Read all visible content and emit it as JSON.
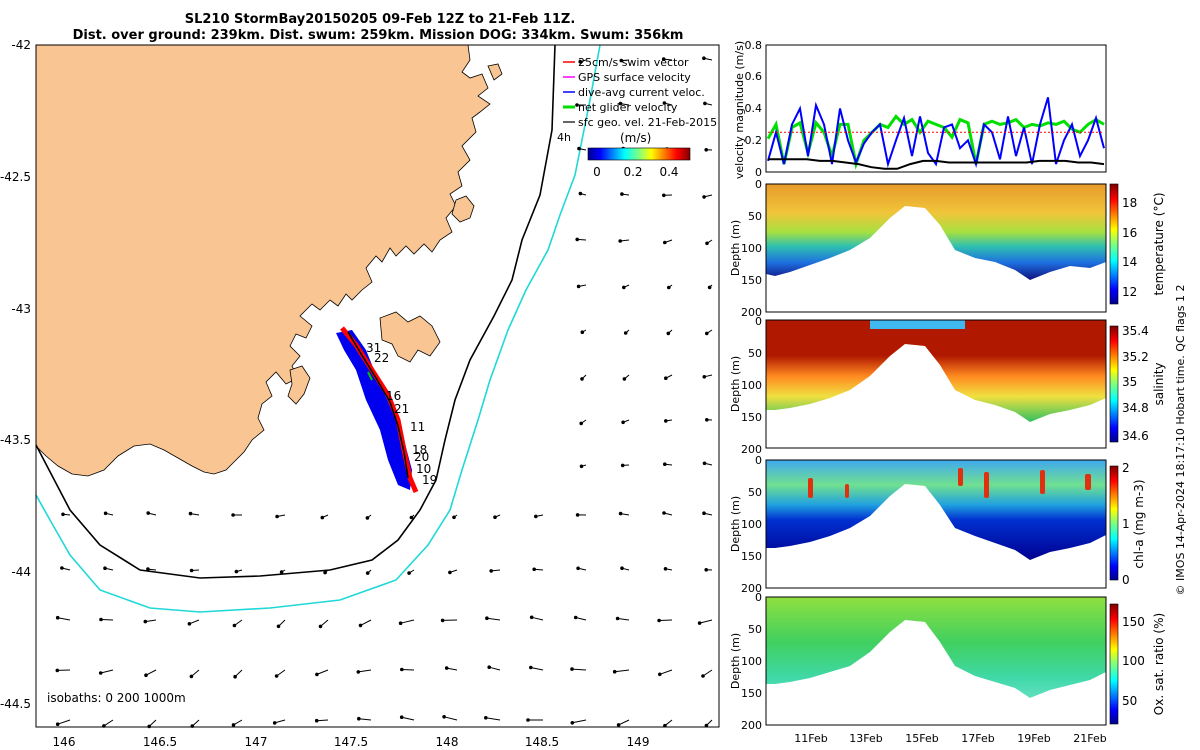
{
  "title": {
    "line1": "SL210 StormBay20150205 09-Feb 12Z to 21-Feb 11Z.",
    "line2": "Dist. over ground: 239km. Dist. swum: 259km. Mission DOG: 334km. Swum: 356km"
  },
  "map": {
    "xticks": [
      "146",
      "146.5",
      "147",
      "147.5",
      "148",
      "148.5",
      "149"
    ],
    "yticks": [
      "-42",
      "-42.5",
      "-43",
      "-43.5",
      "-44",
      "-44.5"
    ],
    "legend": [
      {
        "label": "25cm/s swim vector",
        "color": "#ff0000"
      },
      {
        "label": "GPS surface velocity",
        "color": "#ff00ff"
      },
      {
        "label": "dive-avg current veloc.",
        "color": "#0000ff"
      },
      {
        "label": "net glider velocity",
        "color": "#00e000"
      },
      {
        "label": "sfc geo. vel. 21-Feb-2015",
        "color": "#000000"
      }
    ],
    "time_label": "4h",
    "colorbar": {
      "title": "(m/s)",
      "ticks": [
        "0",
        "0.2",
        "0.4"
      ]
    },
    "isobath_label": "isobaths: 0   200  1000m",
    "track_labels": [
      "31",
      "22",
      "16",
      "21",
      "11",
      "18",
      "20",
      "10",
      "19"
    ]
  },
  "chart_data": [
    {
      "type": "line",
      "ylabel": "velocity magnitude (m/s)",
      "ylim": [
        0,
        0.8
      ],
      "yticks": [
        "0",
        "0.2",
        "0.4",
        "0.6",
        "0.8"
      ],
      "series": [
        {
          "name": "net glider velocity",
          "color": "#00e000",
          "values": [
            0.21,
            0.3,
            0.05,
            0.28,
            0.31,
            0.12,
            0.31,
            0.25,
            0.1,
            0.3,
            0.3,
            0.05,
            0.2,
            0.25,
            0.3,
            0.28,
            0.35,
            0.3,
            0.33,
            0.25,
            0.32,
            0.3,
            0.28,
            0.22,
            0.33,
            0.31,
            0.05,
            0.3,
            0.32,
            0.3,
            0.31,
            0.33,
            0.28,
            0.3,
            0.29,
            0.31,
            0.3,
            0.32,
            0.27,
            0.25,
            0.3,
            0.33,
            0.3
          ]
        },
        {
          "name": "dive-avg current veloc.",
          "color": "#0000ff",
          "values": [
            0.07,
            0.25,
            0.05,
            0.3,
            0.4,
            0.1,
            0.42,
            0.3,
            0.05,
            0.4,
            0.2,
            0.06,
            0.18,
            0.25,
            0.3,
            0.05,
            0.2,
            0.34,
            0.1,
            0.35,
            0.12,
            0.05,
            0.28,
            0.3,
            0.15,
            0.2,
            0.05,
            0.3,
            0.25,
            0.08,
            0.35,
            0.1,
            0.28,
            0.05,
            0.3,
            0.47,
            0.05,
            0.2,
            0.3,
            0.1,
            0.2,
            0.34,
            0.15
          ]
        },
        {
          "name": "25cm/s swim vector",
          "color": "#ff0000",
          "values": [
            0.25,
            0.25,
            0.25,
            0.25,
            0.25,
            0.25,
            0.25,
            0.25,
            0.25,
            0.25,
            0.25,
            0.25,
            0.25,
            0.25,
            0.25,
            0.25,
            0.25,
            0.25,
            0.25,
            0.25,
            0.25,
            0.25,
            0.25,
            0.25,
            0.25,
            0.25,
            0.25,
            0.25,
            0.25,
            0.25,
            0.25,
            0.25,
            0.25,
            0.25,
            0.25,
            0.25,
            0.25,
            0.25,
            0.25,
            0.25,
            0.25,
            0.25,
            0.25
          ]
        },
        {
          "name": "sfc geo. vel.",
          "color": "#000000",
          "values": [
            0.08,
            0.08,
            0.08,
            0.08,
            0.07,
            0.07,
            0.06,
            0.05,
            0.03,
            0.02,
            0.02,
            0.05,
            0.07,
            0.07,
            0.06,
            0.06,
            0.06,
            0.06,
            0.06,
            0.06,
            0.06,
            0.07,
            0.07,
            0.07,
            0.06,
            0.06,
            0.05
          ]
        }
      ]
    },
    {
      "type": "heatmap",
      "ylabel": "Depth (m)",
      "clabel": "temperature (°C)",
      "clim": [
        11,
        19
      ],
      "cticks": [
        "12",
        "14",
        "16",
        "18"
      ],
      "yticks": [
        "0",
        "50",
        "100",
        "150",
        "200"
      ]
    },
    {
      "type": "heatmap",
      "ylabel": "Depth (m)",
      "clabel": "salinity",
      "clim": [
        34.5,
        35.4
      ],
      "cticks": [
        "34.6",
        "34.8",
        "35",
        "35.2",
        "35.4"
      ],
      "yticks": [
        "0",
        "50",
        "100",
        "150",
        "200"
      ]
    },
    {
      "type": "heatmap",
      "ylabel": "Depth (m)",
      "clabel": "chl-a (mg m-3)",
      "clim": [
        0,
        2
      ],
      "cticks": [
        "0",
        "1",
        "2"
      ],
      "yticks": [
        "0",
        "50",
        "100",
        "150",
        "200"
      ]
    },
    {
      "type": "heatmap",
      "ylabel": "Depth (m)",
      "clabel": "Ox. sat. ratio (%)",
      "clim": [
        25,
        175
      ],
      "cticks": [
        "50",
        "100",
        "150"
      ],
      "yticks": [
        "0",
        "50",
        "100",
        "150",
        "200"
      ]
    }
  ],
  "time_axis": [
    "11Feb",
    "13Feb",
    "15Feb",
    "17Feb",
    "19Feb",
    "21Feb"
  ],
  "footer": "© IMOS 14-Apr-2024 18:17:10 Hobart time. QC flags 1  2"
}
